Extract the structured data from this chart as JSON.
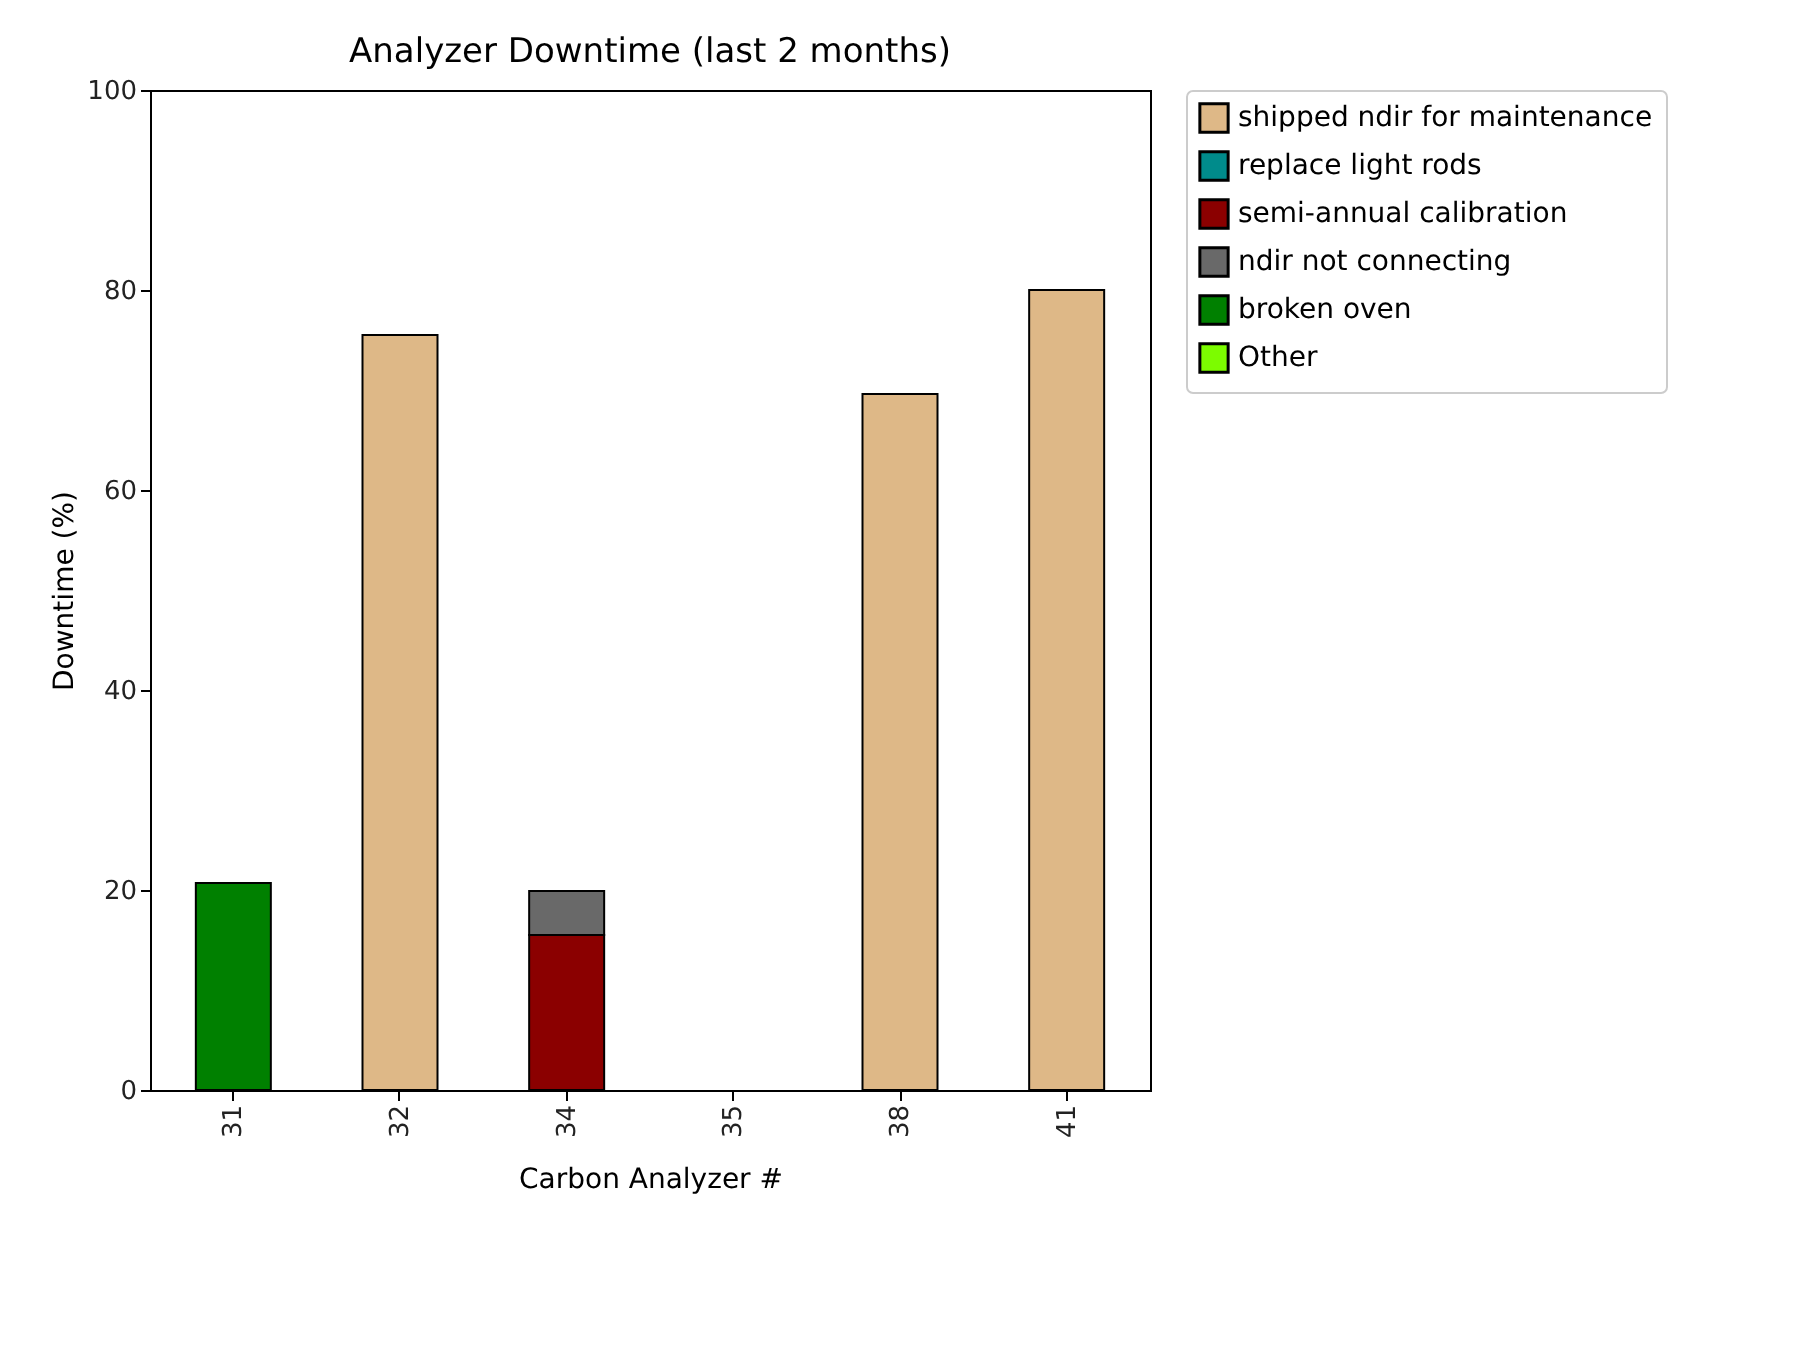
{
  "chart_data": {
    "type": "bar",
    "title": "Analyzer Downtime (last 2 months)",
    "xlabel": "Carbon Analyzer #",
    "ylabel": "Downtime (%)",
    "categories": [
      "31",
      "32",
      "34",
      "35",
      "38",
      "41"
    ],
    "stacked": true,
    "ylim": [
      0,
      100
    ],
    "yticks": [
      0,
      20,
      40,
      60,
      80,
      100
    ],
    "legend": "top right",
    "series": [
      {
        "name": "shipped ndir for maintenance",
        "color": "#deb887",
        "values": [
          null,
          75.5,
          null,
          null,
          69.6,
          80
        ]
      },
      {
        "name": "replace light rods",
        "color": "#008b8b",
        "values": [
          null,
          null,
          null,
          null,
          null,
          null
        ]
      },
      {
        "name": "semi-annual calibration",
        "color": "#8b0000",
        "values": [
          null,
          null,
          15.5,
          null,
          null,
          null
        ]
      },
      {
        "name": "ndir not connecting",
        "color": "#696969",
        "values": [
          null,
          null,
          4.4,
          null,
          null,
          null
        ]
      },
      {
        "name": "broken oven",
        "color": "#008000",
        "values": [
          20.7,
          null,
          null,
          null,
          null,
          null
        ]
      },
      {
        "name": "Other",
        "color": "#7cfc00",
        "values": [
          null,
          null,
          null,
          null,
          null,
          null
        ]
      }
    ]
  }
}
